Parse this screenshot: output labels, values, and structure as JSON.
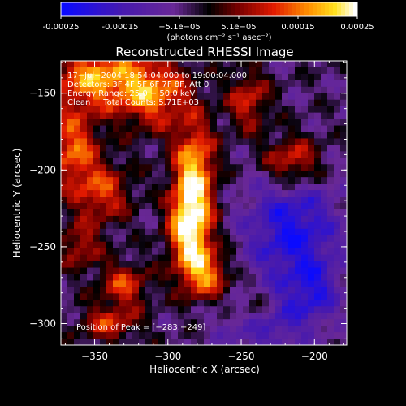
{
  "chart_data": {
    "type": "heatmap",
    "title": "Reconstructed RHESSI Image",
    "colorbar": {
      "ticks": [
        "-0.00025",
        "-0.00015",
        "−5.1e−05",
        "5.1e−05",
        "0.00015",
        "0.00025"
      ],
      "range": [
        -0.00025,
        0.00025
      ],
      "units": "(photons cm⁻² s⁻¹ asec⁻²)"
    },
    "xlabel": "Heliocentric X (arcsec)",
    "ylabel": "Heliocentric Y (arcsec)",
    "xlim": [
      -373,
      -178
    ],
    "ylim": [
      -314,
      -129
    ],
    "xticks": [
      {
        "value": -350,
        "label": "−350"
      },
      {
        "value": -300,
        "label": "−300"
      },
      {
        "value": -250,
        "label": "−250"
      },
      {
        "value": -200,
        "label": "−200"
      }
    ],
    "yticks": [
      {
        "value": -150,
        "label": "−150"
      },
      {
        "value": -200,
        "label": "−200"
      },
      {
        "value": -250,
        "label": "−250"
      },
      {
        "value": -300,
        "label": "−300"
      }
    ],
    "annotations": [
      "17−Jul−2004 18:54:04.000 to 19:00:04.000",
      "Detectors: 3F 4F 5F 6F 7F 8F, Att 0",
      "Energy Range: 25.0 − 50.0 keV",
      "Clean     Total Counts: 5.71E+03"
    ],
    "peak_label": "Position of Peak = [−283,−249]",
    "peak": [
      -283,
      -249
    ],
    "colormap": "red-temperature",
    "grid": false,
    "bright_regions": [
      {
        "x": -285,
        "y": -238,
        "sigma_x": 10,
        "sigma_y": 18,
        "level": 1.0
      },
      {
        "x": -282,
        "y": -200,
        "sigma_x": 10,
        "sigma_y": 22,
        "level": 0.85
      },
      {
        "x": -275,
        "y": -268,
        "sigma_x": 12,
        "sigma_y": 12,
        "level": 0.7
      },
      {
        "x": -350,
        "y": -140,
        "sigma_x": 22,
        "sigma_y": 14,
        "level": 0.75
      },
      {
        "x": -310,
        "y": -150,
        "sigma_x": 18,
        "sigma_y": 16,
        "level": 0.7
      },
      {
        "x": -365,
        "y": -185,
        "sigma_x": 12,
        "sigma_y": 18,
        "level": 0.65
      },
      {
        "x": -345,
        "y": -215,
        "sigma_x": 14,
        "sigma_y": 14,
        "level": 0.55
      },
      {
        "x": -245,
        "y": -155,
        "sigma_x": 10,
        "sigma_y": 14,
        "level": 0.5
      },
      {
        "x": -215,
        "y": -195,
        "sigma_x": 14,
        "sigma_y": 12,
        "level": 0.65
      },
      {
        "x": -330,
        "y": -275,
        "sigma_x": 12,
        "sigma_y": 10,
        "level": 0.55
      },
      {
        "x": -340,
        "y": -300,
        "sigma_x": 14,
        "sigma_y": 8,
        "level": 0.5
      },
      {
        "x": -360,
        "y": -250,
        "sigma_x": 10,
        "sigma_y": 10,
        "level": 0.45
      },
      {
        "x": -240,
        "y": -290,
        "sigma_x": 10,
        "sigma_y": 10,
        "level": 0.4
      }
    ],
    "dark_regions": [
      {
        "x": -215,
        "y": -240,
        "sigma_x": 22,
        "sigma_y": 28,
        "level": 0.9
      },
      {
        "x": -235,
        "y": -300,
        "sigma_x": 20,
        "sigma_y": 14,
        "level": 0.6
      },
      {
        "x": -200,
        "y": -280,
        "sigma_x": 12,
        "sigma_y": 14,
        "level": 0.55
      }
    ]
  }
}
